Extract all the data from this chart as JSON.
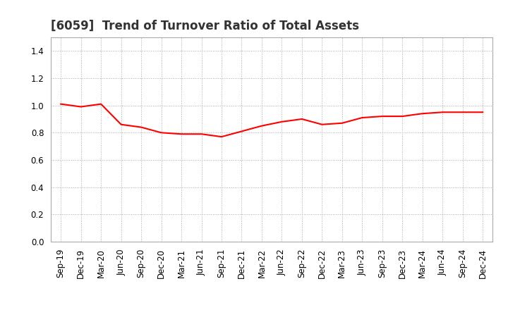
{
  "title": "[6059]  Trend of Turnover Ratio of Total Assets",
  "labels": [
    "Sep-19",
    "Dec-19",
    "Mar-20",
    "Jun-20",
    "Sep-20",
    "Dec-20",
    "Mar-21",
    "Jun-21",
    "Sep-21",
    "Dec-21",
    "Mar-22",
    "Jun-22",
    "Sep-22",
    "Dec-22",
    "Mar-23",
    "Jun-23",
    "Sep-23",
    "Dec-23",
    "Mar-24",
    "Jun-24",
    "Sep-24",
    "Dec-24"
  ],
  "values": [
    1.01,
    0.99,
    1.01,
    0.86,
    0.84,
    0.8,
    0.79,
    0.79,
    0.77,
    0.81,
    0.85,
    0.88,
    0.9,
    0.86,
    0.87,
    0.91,
    0.92,
    0.92,
    0.94,
    0.95,
    0.95,
    0.95
  ],
  "line_color": "#ff0000",
  "line_width": 1.5,
  "ylim": [
    0.0,
    1.5
  ],
  "yticks": [
    0.0,
    0.2,
    0.4,
    0.6,
    0.8,
    1.0,
    1.2,
    1.4
  ],
  "background_color": "#ffffff",
  "plot_bg_color": "#ffffff",
  "grid_color": "#aaaaaa",
  "title_fontsize": 12,
  "tick_fontsize": 8.5
}
